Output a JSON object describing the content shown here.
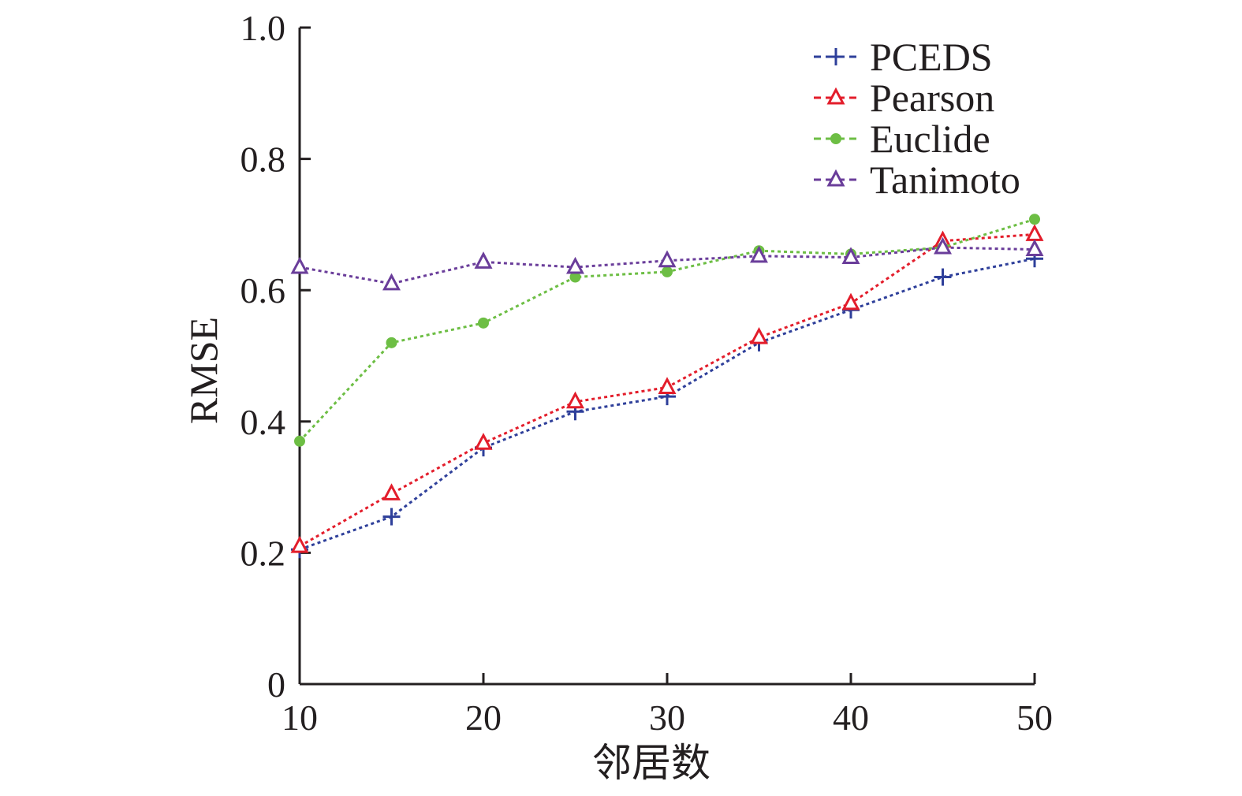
{
  "chart_data": {
    "type": "line",
    "title": "",
    "xlabel": "邻居数",
    "ylabel": "RMSE",
    "xlim": [
      10,
      50
    ],
    "ylim": [
      0,
      1.0
    ],
    "x": [
      10,
      15,
      20,
      25,
      30,
      35,
      40,
      45,
      50
    ],
    "x_ticks": [
      10,
      20,
      30,
      40,
      50
    ],
    "x_tick_labels": [
      "10",
      "20",
      "30",
      "40",
      "50"
    ],
    "y_ticks": [
      0,
      0.2,
      0.4,
      0.6,
      0.8,
      1.0
    ],
    "y_tick_labels": [
      "0",
      "0.2",
      "0.4",
      "0.6",
      "0.8",
      "1.0"
    ],
    "grid": false,
    "legend_position": "top-right",
    "series": [
      {
        "name": "PCEDS",
        "marker": "plus",
        "color": "#2e3f9a",
        "values": [
          0.205,
          0.255,
          0.36,
          0.415,
          0.438,
          0.52,
          0.57,
          0.62,
          0.648
        ]
      },
      {
        "name": "Pearson",
        "marker": "triangle",
        "color": "#e31d2b",
        "values": [
          0.21,
          0.29,
          0.367,
          0.43,
          0.452,
          0.528,
          0.58,
          0.675,
          0.685
        ]
      },
      {
        "name": "Euclide",
        "marker": "circle",
        "color": "#6dbe44",
        "values": [
          0.37,
          0.52,
          0.55,
          0.62,
          0.628,
          0.66,
          0.655,
          0.665,
          0.708
        ]
      },
      {
        "name": "Tanimoto",
        "marker": "triangle",
        "color": "#6a3d9a",
        "values": [
          0.635,
          0.61,
          0.643,
          0.635,
          0.645,
          0.652,
          0.65,
          0.665,
          0.662
        ]
      }
    ]
  }
}
